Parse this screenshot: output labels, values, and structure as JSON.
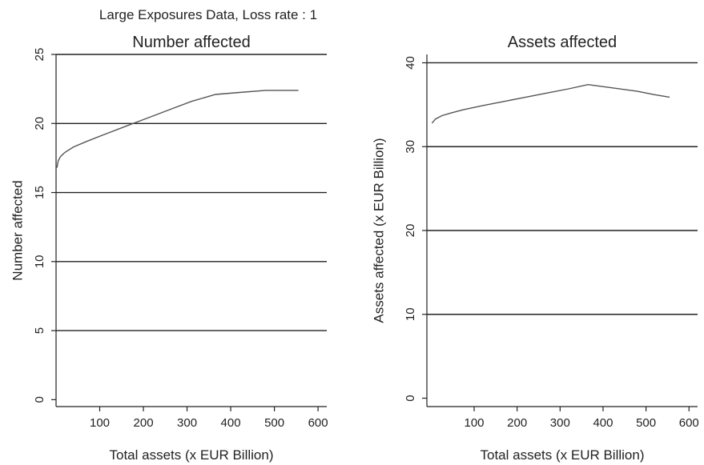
{
  "figure": {
    "super_title": "Large Exposures Data, Loss rate : 1"
  },
  "chart_data": [
    {
      "type": "line",
      "title": "Number affected",
      "xlabel": "Total assets (x EUR Billion)",
      "ylabel": "Number affected",
      "xlim": [
        0,
        620
      ],
      "ylim": [
        -0.5,
        25
      ],
      "xticks": [
        100,
        200,
        300,
        400,
        500,
        600
      ],
      "yticks": [
        0,
        5,
        10,
        15,
        20,
        25
      ],
      "grid": "horizontal",
      "series": [
        {
          "x": [
            2,
            5,
            10,
            20,
            40,
            70,
            110,
            160,
            210,
            260,
            310,
            365,
            420,
            480,
            520,
            555
          ],
          "y": [
            16.8,
            17.3,
            17.6,
            17.9,
            18.3,
            18.7,
            19.2,
            19.8,
            20.4,
            21.0,
            21.6,
            22.1,
            22.25,
            22.4,
            22.4,
            22.4
          ]
        }
      ]
    },
    {
      "type": "line",
      "title": "Assets affected",
      "xlabel": "Total assets (x EUR Billion)",
      "ylabel": "Assets affected (x EUR Billion)",
      "xlim": [
        -10,
        620
      ],
      "ylim": [
        -1,
        41
      ],
      "xticks": [
        100,
        200,
        300,
        400,
        500,
        600
      ],
      "yticks": [
        0,
        10,
        20,
        30,
        40
      ],
      "grid": "horizontal",
      "series": [
        {
          "x": [
            2,
            10,
            25,
            45,
            75,
            120,
            170,
            220,
            270,
            320,
            365,
            410,
            480,
            520,
            555
          ],
          "y": [
            32.8,
            33.3,
            33.7,
            34.0,
            34.4,
            34.9,
            35.4,
            35.9,
            36.4,
            36.9,
            37.4,
            37.1,
            36.6,
            36.2,
            35.9
          ]
        }
      ]
    }
  ]
}
